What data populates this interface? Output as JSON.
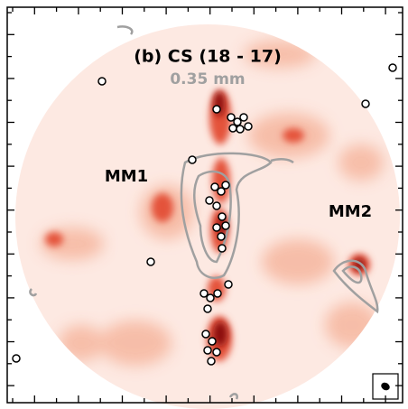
{
  "panel": {
    "title": "(b) CS (18 - 17)",
    "subtitle": "0.35 mm",
    "labels": [
      "MM1",
      "MM2"
    ]
  }
}
